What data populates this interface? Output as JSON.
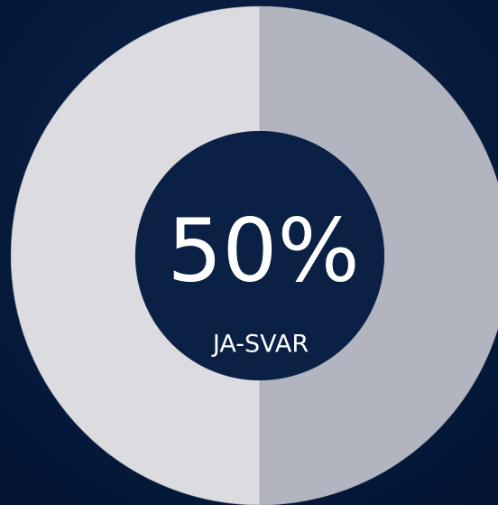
{
  "chart_data": {
    "type": "donut",
    "values": [
      50,
      50
    ],
    "colors": [
      "#b2b5bf",
      "#dcdce0"
    ],
    "center_label": "50%",
    "center_sublabel": "JA-SVAR"
  }
}
